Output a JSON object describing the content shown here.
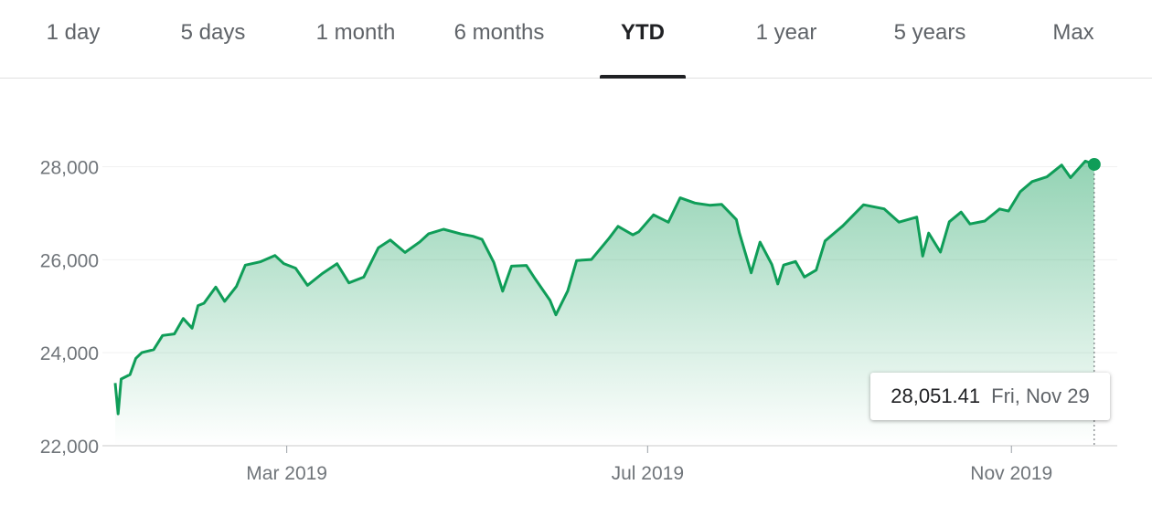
{
  "tabs": [
    {
      "label": "1 day"
    },
    {
      "label": "5 days"
    },
    {
      "label": "1 month"
    },
    {
      "label": "6 months"
    },
    {
      "label": "YTD"
    },
    {
      "label": "1 year"
    },
    {
      "label": "5 years"
    },
    {
      "label": "Max"
    }
  ],
  "active_tab": "YTD",
  "tooltip": {
    "value": "28,051.41",
    "date": "Fri, Nov 29"
  },
  "colors": {
    "line": "#0f9d58",
    "accent": "#202124"
  },
  "chart_data": {
    "type": "area",
    "title": "",
    "xlabel": "",
    "ylabel": "",
    "ylim": [
      22000,
      28600
    ],
    "yticks": [
      22000,
      24000,
      26000,
      28000
    ],
    "ytick_labels": [
      "22,000",
      "24,000",
      "26,000",
      "28,000"
    ],
    "xticks": [
      "2019-03-01",
      "2019-07-01",
      "2019-11-01"
    ],
    "xtick_labels": [
      "Mar 2019",
      "Jul 2019",
      "Nov 2019"
    ],
    "x_range": [
      "2019-01-02",
      "2019-12-04"
    ],
    "grid": "horizontal",
    "legend": "none",
    "x": [
      "2019-01-02",
      "2019-01-03",
      "2019-01-04",
      "2019-01-07",
      "2019-01-09",
      "2019-01-11",
      "2019-01-15",
      "2019-01-18",
      "2019-01-22",
      "2019-01-25",
      "2019-01-28",
      "2019-01-30",
      "2019-02-01",
      "2019-02-05",
      "2019-02-08",
      "2019-02-12",
      "2019-02-15",
      "2019-02-20",
      "2019-02-25",
      "2019-02-28",
      "2019-03-04",
      "2019-03-08",
      "2019-03-13",
      "2019-03-18",
      "2019-03-22",
      "2019-03-27",
      "2019-04-01",
      "2019-04-05",
      "2019-04-10",
      "2019-04-15",
      "2019-04-18",
      "2019-04-23",
      "2019-04-29",
      "2019-05-03",
      "2019-05-06",
      "2019-05-10",
      "2019-05-13",
      "2019-05-16",
      "2019-05-21",
      "2019-05-24",
      "2019-05-29",
      "2019-05-31",
      "2019-06-04",
      "2019-06-07",
      "2019-06-12",
      "2019-06-18",
      "2019-06-21",
      "2019-06-26",
      "2019-06-28",
      "2019-07-03",
      "2019-07-08",
      "2019-07-12",
      "2019-07-17",
      "2019-07-22",
      "2019-07-26",
      "2019-07-31",
      "2019-08-01",
      "2019-08-05",
      "2019-08-08",
      "2019-08-12",
      "2019-08-14",
      "2019-08-16",
      "2019-08-20",
      "2019-08-23",
      "2019-08-27",
      "2019-08-30",
      "2019-09-05",
      "2019-09-12",
      "2019-09-19",
      "2019-09-24",
      "2019-09-30",
      "2019-10-02",
      "2019-10-04",
      "2019-10-08",
      "2019-10-11",
      "2019-10-15",
      "2019-10-18",
      "2019-10-23",
      "2019-10-28",
      "2019-10-31",
      "2019-11-04",
      "2019-11-08",
      "2019-11-13",
      "2019-11-18",
      "2019-11-21",
      "2019-11-26",
      "2019-11-29"
    ],
    "series": [
      {
        "values": [
          23347,
          22686,
          23433,
          23531,
          23879,
          24001,
          24066,
          24371,
          24405,
          24737,
          24528,
          25014,
          25064,
          25411,
          25106,
          25425,
          25883,
          25954,
          26091,
          25916,
          25819,
          25450,
          25702,
          25914,
          25502,
          25626,
          26258,
          26424,
          26157,
          26384,
          26559,
          26656,
          26554,
          26504,
          26438,
          25942,
          25324,
          25862,
          25877,
          25586,
          25126,
          24815,
          25332,
          25983,
          26005,
          26465,
          26719,
          26536,
          26600,
          26966,
          26806,
          27332,
          27219,
          27171,
          27192,
          26864,
          26583,
          25718,
          26378,
          25897,
          25479,
          25886,
          25962,
          25629,
          25778,
          26403,
          26728,
          27182,
          27094,
          26808,
          26917,
          26078,
          26573,
          26164,
          26817,
          27024,
          26770,
          26833,
          27091,
          27046,
          27462,
          27681,
          27783,
          28036,
          27766,
          28121,
          28051
        ]
      }
    ]
  }
}
